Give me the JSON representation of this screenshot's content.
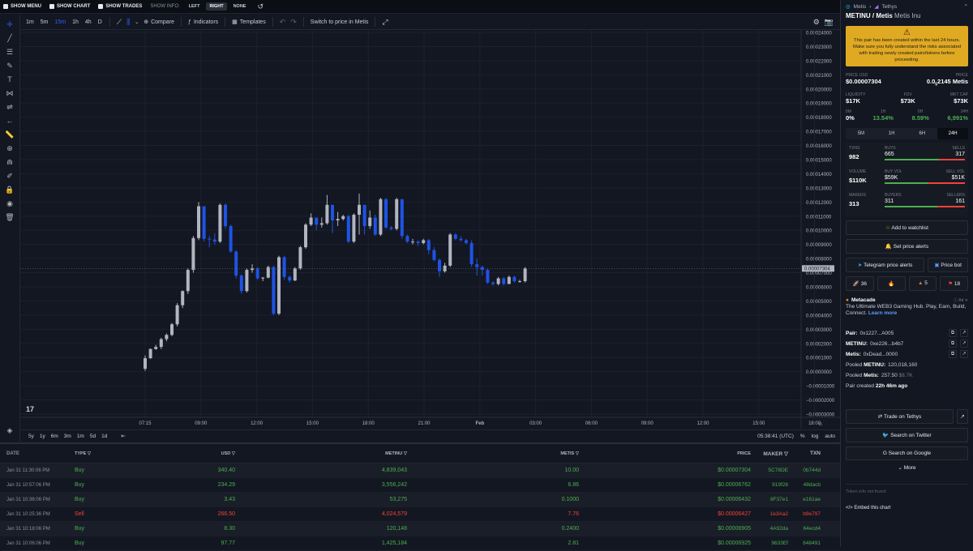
{
  "topbar": {
    "show_menu": "SHOW MENU",
    "show_chart": "SHOW CHART",
    "show_trades": "SHOW TRADES",
    "show_info": "SHOW INFO:",
    "left": "LEFT",
    "right": "RIGHT",
    "none": "NONE"
  },
  "toolbar": {
    "timeframes": [
      "1m",
      "5m",
      "15m",
      "1h",
      "4h",
      "D"
    ],
    "compare": "Compare",
    "indicators": "Indicators",
    "templates": "Templates",
    "switch": "Switch to price in Metis"
  },
  "bottombar": {
    "ranges": [
      "5y",
      "1y",
      "6m",
      "3m",
      "1m",
      "5d",
      "1d"
    ],
    "time": "05:38:41 (UTC)",
    "percent": "%",
    "log": "log",
    "auto": "auto"
  },
  "chart_data": {
    "type": "candlestick",
    "y_ticks": [
      "0.00024000",
      "0.00023000",
      "0.00022000",
      "0.00021000",
      "0.00020000",
      "0.00019000",
      "0.00018000",
      "0.00017000",
      "0.00016000",
      "0.00015000",
      "0.00014000",
      "0.00013000",
      "0.00012000",
      "0.00011000",
      "0.00010000",
      "0.00009000",
      "0.00008000",
      "0.00007000",
      "0.00006000",
      "0.00005000",
      "0.00004000",
      "0.00003000",
      "0.00002000",
      "0.00001000",
      "0.00000000",
      "−0.00001000",
      "−0.00002000",
      "−0.00003000"
    ],
    "x_ticks": [
      "07:15",
      "09:00",
      "12:00",
      "15:00",
      "18:00",
      "21:00",
      "Feb",
      "03:00",
      "06:00",
      "09:00",
      "12:00",
      "15:00",
      "18:00",
      "20:00"
    ],
    "current_price_label": "0.00007304",
    "ylim": [
      -3e-05,
      0.00024
    ],
    "candles": [
      [
        2e-06,
        9.5e-06,
        5e-07,
        1.15e-05
      ],
      [
        9.5e-06,
        1.6e-05,
        9e-06,
        1.65e-05
      ],
      [
        1.6e-05,
        1.75e-05,
        1.55e-05,
        1.9e-05
      ],
      [
        1.75e-05,
        2.3e-05,
        1.6e-05,
        2.4e-05
      ],
      [
        2.3e-05,
        2.6e-05,
        2.15e-05,
        2.7e-05
      ],
      [
        2.6e-05,
        3.35e-05,
        2.5e-05,
        3.45e-05
      ],
      [
        3.35e-05,
        4.7e-05,
        3.2e-05,
        4.85e-05
      ],
      [
        4.7e-05,
        5.7e-05,
        4.5e-05,
        5.75e-05
      ],
      [
        5.7e-05,
        7.2e-05,
        5.5e-05,
        7.3e-05
      ],
      [
        7.2e-05,
        9.45e-05,
        7e-05,
        9.6e-05
      ],
      [
        9.45e-05,
        0.000117,
        9.3e-05,
        0.00012
      ],
      [
        0.000117,
        9.4e-05,
        9.2e-05,
        0.000117
      ],
      [
        9.4e-05,
        9.35e-05,
        8.8e-05,
        9.6e-05
      ],
      [
        9.35e-05,
        9.2e-05,
        9e-05,
        9.8e-05
      ],
      [
        9.2e-05,
        0.000118,
        9.1e-05,
        0.000119
      ],
      [
        0.000118,
        0.000103,
        0.000101,
        0.000119
      ],
      [
        0.000103,
        8.5e-05,
        8.4e-05,
        0.000104
      ],
      [
        8.5e-05,
        6.8e-05,
        6.6e-05,
        8.6e-05
      ],
      [
        6.8e-05,
        5.7e-05,
        5.5e-05,
        6.9e-05
      ],
      [
        5.7e-05,
        7.2e-05,
        5.6e-05,
        7.3e-05
      ],
      [
        7.2e-05,
        7.3e-05,
        7e-05,
        7.6e-05
      ],
      [
        7.3e-05,
        6.6e-05,
        6.5e-05,
        7.4e-05
      ],
      [
        6.6e-05,
        6.65e-05,
        6.4e-05,
        6.7e-05
      ],
      [
        6.65e-05,
        7.4e-05,
        6.6e-05,
        7.5e-05
      ],
      [
        7.4e-05,
        4.1e-05,
        4e-05,
        7.5e-05
      ],
      [
        4.1e-05,
        8.1e-05,
        4e-05,
        8.2e-05
      ],
      [
        8.1e-05,
        6.7e-05,
        6.5e-05,
        8.2e-05
      ],
      [
        6.7e-05,
        6.45e-05,
        6.3e-05,
        6.8e-05
      ],
      [
        6.45e-05,
        7.3e-05,
        6.4e-05,
        7.4e-05
      ],
      [
        7.3e-05,
        8.8e-05,
        7.2e-05,
        8.9e-05
      ],
      [
        8.8e-05,
        0.000104,
        8.7e-05,
        0.000105
      ],
      [
        0.000104,
        0.000109,
        0.000103,
        0.000112
      ],
      [
        0.000109,
        0.000104,
        0.0001,
        0.000109
      ],
      [
        0.000104,
        0.000105,
        0.000102,
        0.000109
      ],
      [
        0.000105,
        0.000118,
        0.000104,
        0.000125
      ],
      [
        0.000118,
        0.000107,
        9.8e-05,
        0.000118
      ],
      [
        0.000107,
        0.000108,
        0.000103,
        0.000113
      ],
      [
        0.000108,
        0.00011,
        0.000107,
        0.000111
      ],
      [
        0.00011,
        9.2e-05,
        9.1e-05,
        0.000111
      ],
      [
        9.2e-05,
        0.000111,
        9.1e-05,
        0.000112
      ],
      [
        0.000111,
        0.000118,
        9.7e-05,
        0.000126
      ],
      [
        0.000118,
        0.000103,
        9.7e-05,
        0.000118
      ],
      [
        0.000103,
        0.000109,
        0.000101,
        0.000114
      ],
      [
        0.000109,
        9.7e-05,
        9.6e-05,
        0.000111
      ],
      [
        9.7e-05,
        0.000122,
        9.6e-05,
        0.000123
      ],
      [
        0.000122,
        0.000102,
        0.000101,
        0.000123
      ],
      [
        0.000102,
        0.000101,
        0.0001,
        0.000103
      ],
      [
        0.000101,
        0.000122,
        0.0001,
        0.000123
      ],
      [
        0.000122,
        9.6e-05,
        9.4e-05,
        0.000122
      ],
      [
        9.6e-05,
        9.2e-05,
        9.1e-05,
        9.7e-05
      ],
      [
        9.2e-05,
        9.2e-05,
        9e-05,
        9.4e-05
      ],
      [
        9.2e-05,
        9.1e-05,
        8.9e-05,
        9.3e-05
      ],
      [
        9.1e-05,
        9.3e-05,
        9e-05,
        9.4e-05
      ],
      [
        9.3e-05,
        8.6e-05,
        8.3e-05,
        9.4e-05
      ],
      [
        8.6e-05,
        7.9e-05,
        7.8e-05,
        8.8e-05
      ],
      [
        7.9e-05,
        7.1e-05,
        6.7e-05,
        8e-05
      ],
      [
        7.1e-05,
        7.5e-05,
        7e-05,
        7.7e-05
      ],
      [
        7.5e-05,
        9.7e-05,
        7.4e-05,
        9.8e-05
      ],
      [
        9.7e-05,
        9.4e-05,
        9.3e-05,
        9.8e-05
      ],
      [
        9.4e-05,
        9.3e-05,
        9.2e-05,
        9.6e-05
      ],
      [
        9.3e-05,
        9.1e-05,
        9e-05,
        9.4e-05
      ],
      [
        9.1e-05,
        7.6e-05,
        7.4e-05,
        9.3e-05
      ],
      [
        7.6e-05,
        7.4e-05,
        6.8e-05,
        8e-05
      ],
      [
        7.4e-05,
        7.2e-05,
        6.8e-05,
        7.5e-05
      ],
      [
        7.2e-05,
        6.3e-05,
        6.2e-05,
        7.3e-05
      ],
      [
        6.3e-05,
        6.2e-05,
        6.1e-05,
        6.4e-05
      ],
      [
        6.2e-05,
        6.6e-05,
        6.1e-05,
        6.7e-05
      ],
      [
        6.6e-05,
        6.2e-05,
        6.1e-05,
        6.7e-05
      ],
      [
        6.2e-05,
        6.7e-05,
        6.2e-05,
        6.8e-05
      ],
      [
        6.7e-05,
        6.4e-05,
        6.3e-05,
        6.8e-05
      ],
      [
        6.4e-05,
        6.4e-05,
        6.3e-05,
        6.5e-05
      ],
      [
        6.4e-05,
        7.3e-05,
        6.3e-05,
        7.4e-05
      ]
    ]
  },
  "trades": {
    "headers": {
      "date": "DATE",
      "type": "TYPE",
      "usd": "USD",
      "metinu": "METINU",
      "metis": "METIS",
      "price": "PRICE",
      "maker": "MAKER",
      "txn": "TXN"
    },
    "rows": [
      {
        "date": "Jan 31 11:30:06 PM",
        "type": "Buy",
        "usd": "340.40",
        "metinu": "4,839,043",
        "metis": "10.00",
        "price": "$0.00007304",
        "maker": "5C78DE",
        "txn": "0b744d"
      },
      {
        "date": "Jan 31 10:57:06 PM",
        "type": "Buy",
        "usd": "234.29",
        "metinu": "3,556,242",
        "metis": "6.86",
        "price": "$0.00006762",
        "maker": "919f28",
        "txn": "48dacb"
      },
      {
        "date": "Jan 31 10:36:06 PM",
        "type": "Buy",
        "usd": "3.43",
        "metinu": "53,275",
        "metis": "0.1000",
        "price": "$0.00006432",
        "maker": "8F37e1",
        "txn": "e161ae"
      },
      {
        "date": "Jan 31 10:25:36 PM",
        "type": "Sell",
        "usd": "266.50",
        "metinu": "4,024,579",
        "metis": "7.76",
        "price": "$0.00006427",
        "maker": "1e3Aa2",
        "txn": "b9e797"
      },
      {
        "date": "Jan 31 10:18:06 PM",
        "type": "Buy",
        "usd": "8.30",
        "metinu": "120,148",
        "metis": "0.2400",
        "price": "$0.00006905",
        "maker": "4A92da",
        "txn": "64ecd4"
      },
      {
        "date": "Jan 31 10:06:06 PM",
        "type": "Buy",
        "usd": "97.77",
        "metinu": "1,425,184",
        "metis": "2.81",
        "price": "$0.00006925",
        "maker": "9633Ef",
        "txn": "648491"
      }
    ]
  },
  "side": {
    "crumb_chain": "Metis",
    "crumb_dex": "Tethys",
    "pair": "METINU / Metis",
    "pair_name": "Metis Inu",
    "warning": "This pair has been created within the last 24 hours. Make sure you fully understand the risks associated with trading newly created pairs/tokens before proceeding.",
    "price_usd_label": "PRICE USD",
    "price_usd": "$0.00007304",
    "price_label": "PRICE",
    "price": "0.0",
    "price_sub": "5",
    "price_rest": "2145 Metis",
    "liq_label": "LIQUIDITY",
    "liq": "$17K",
    "fdv_label": "FDV",
    "fdv": "$73K",
    "mcap_label": "MKT CAP",
    "mcap": "$73K",
    "chg": [
      {
        "k": "5M",
        "v": "0%"
      },
      {
        "k": "1H",
        "v": "13.54%"
      },
      {
        "k": "6H",
        "v": "8.59%"
      },
      {
        "k": "24H",
        "v": "6,991%"
      }
    ],
    "tabs": [
      "5M",
      "1H",
      "6H",
      "24H"
    ],
    "stats": [
      {
        "lk": "TXNS",
        "lv": "982",
        "a": "BUYS",
        "b": "SELLS",
        "av": "665",
        "bv": "317",
        "ratio": 0.677
      },
      {
        "lk": "VOLUME",
        "lv": "$110K",
        "a": "BUY VOL",
        "b": "SELL VOL",
        "av": "$59K",
        "bv": "$51K",
        "ratio": 0.536
      },
      {
        "lk": "MAKERS",
        "lv": "313",
        "a": "BUYERS",
        "b": "SELLERS",
        "av": "311",
        "bv": "161",
        "ratio": 0.659
      }
    ],
    "watchlist": "Add to watchlist",
    "alerts": "Set price alerts",
    "telegram": "Telegram price alerts",
    "pricebot": "Price bot",
    "reactions": [
      "36",
      "",
      "5",
      "18"
    ],
    "ad_title": "Metacade",
    "ad_tag": "Ad",
    "ad_text": "The Ultimate WEB3 Gaming Hub. Play, Earn, Build, Connect.",
    "ad_link": "Learn more",
    "pair_addr_label": "Pair:",
    "pair_addr": "0x1227...A005",
    "metinu_addr_label": "METINU:",
    "metinu_addr": "0xe226...b4b7",
    "metis_addr_label": "Metis:",
    "metis_addr": "0xDead...0000",
    "pooled_metinu_label": "Pooled",
    "pooled_metinu_token": "METINU:",
    "pooled_metinu": "120,018,160",
    "pooled_metis_label": "Pooled",
    "pooled_metis_token": "Metis:",
    "pooled_metis": "257.50",
    "pooled_metis_usd": "$8.7K",
    "created_label": "Pair created",
    "created": "22h 46m ago",
    "trade": "Trade on Tethys",
    "twitter": "Search on Twitter",
    "google": "Search on Google",
    "more": "More",
    "not_found": "Token info not found",
    "embed": "Embed this chart"
  }
}
